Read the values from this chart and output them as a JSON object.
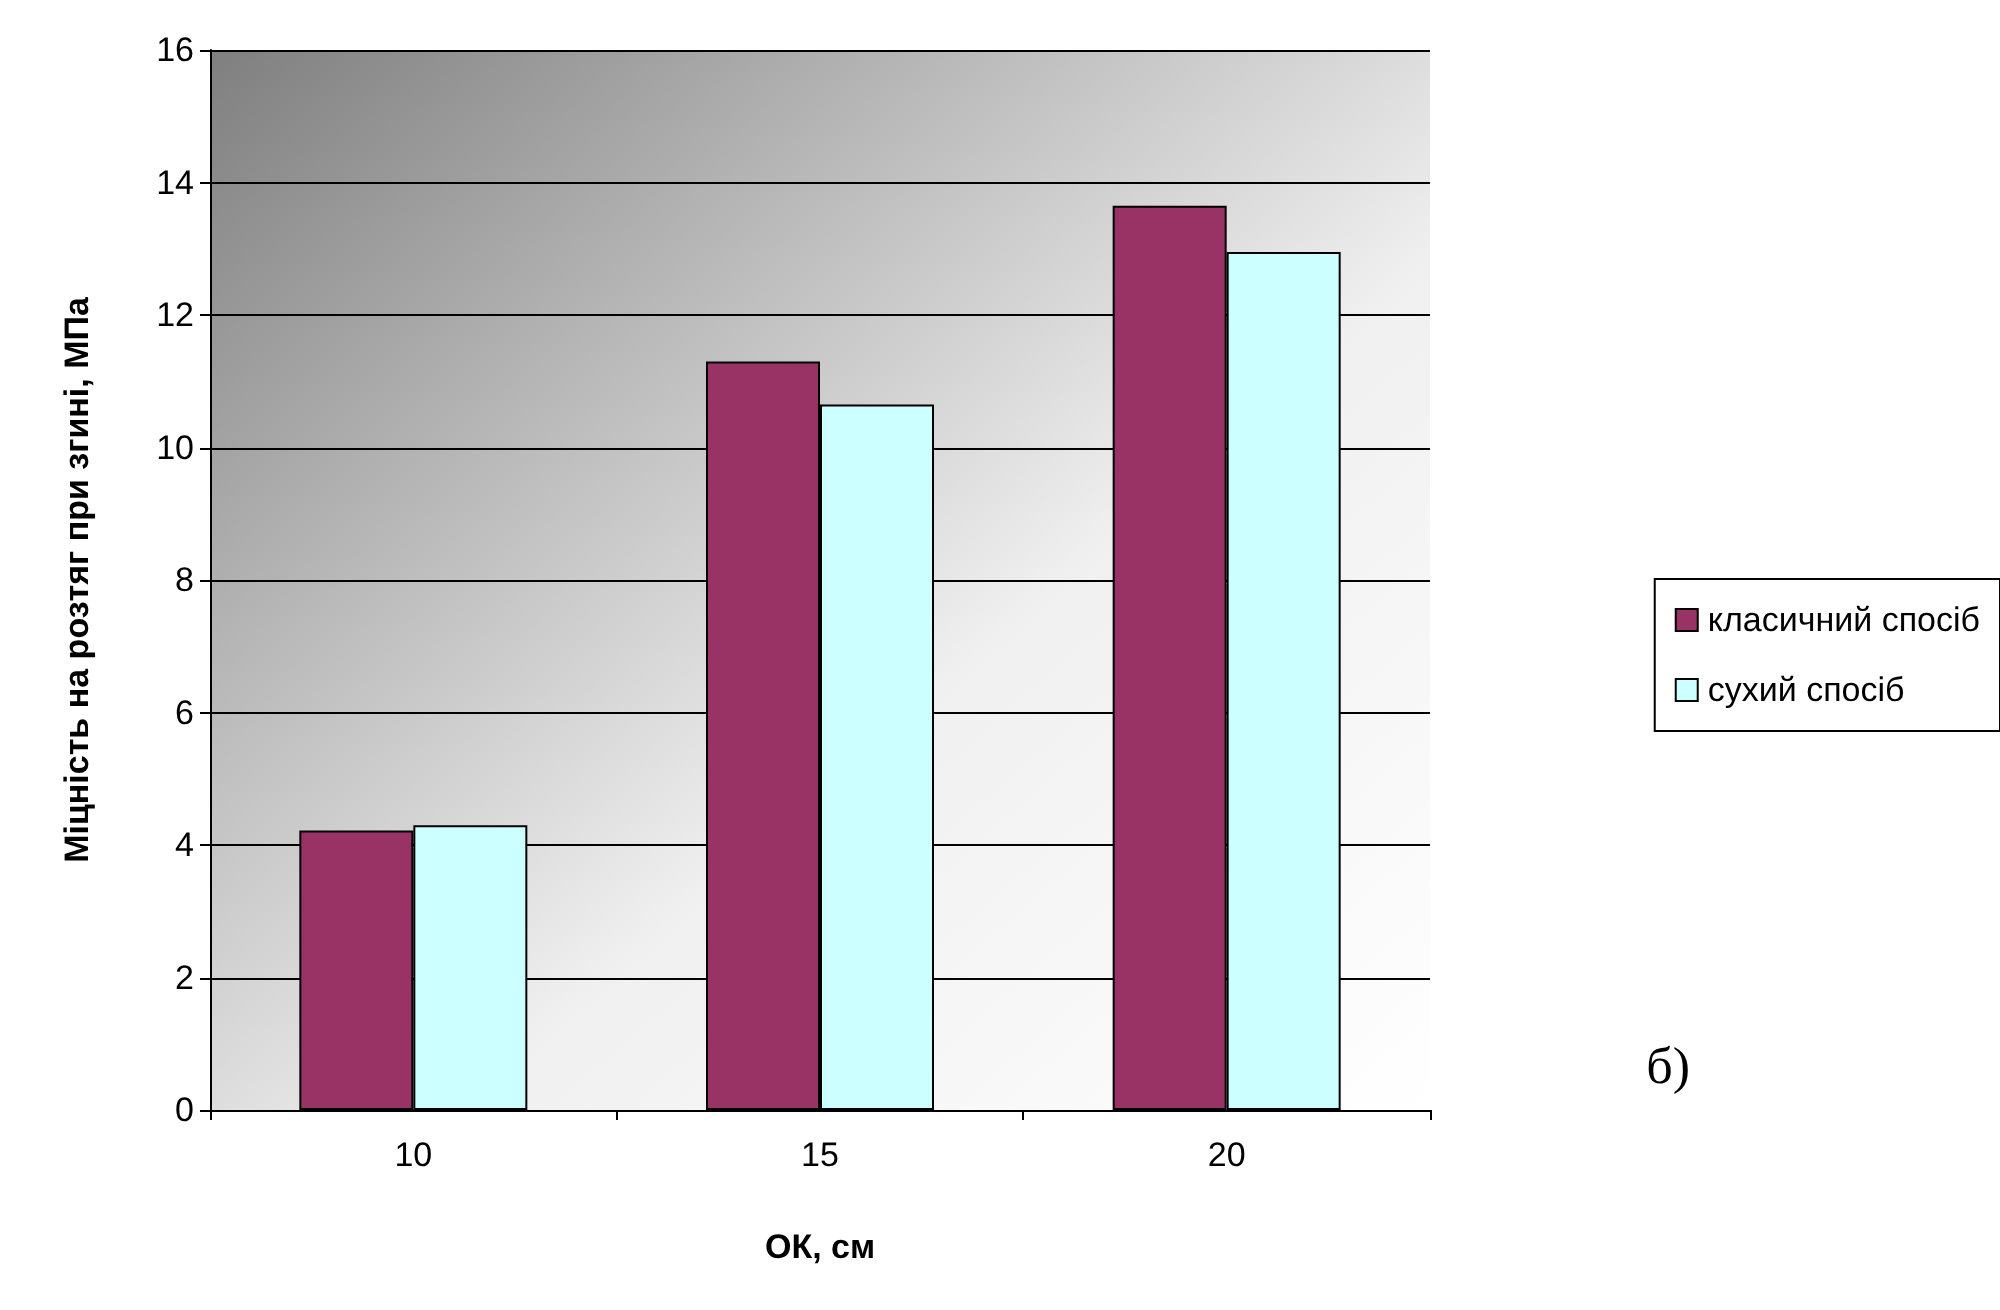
{
  "chart_data": {
    "type": "bar",
    "xlabel": "ОК, см",
    "ylabel": "Міцність на розтяг при згині, МПа",
    "categories": [
      "10",
      "15",
      "20"
    ],
    "series": [
      {
        "name": "класичний спосіб",
        "color": "#993366",
        "values": [
          4.22,
          11.3,
          13.65
        ]
      },
      {
        "name": "сухий спосіб",
        "color": "#ccffff",
        "values": [
          4.3,
          10.65,
          12.95
        ]
      }
    ],
    "ylim": [
      0,
      16
    ],
    "yticks": [
      0,
      2,
      4,
      6,
      8,
      10,
      12,
      14,
      16
    ],
    "grid": "y",
    "legend": "right",
    "annotations": [
      "б)"
    ]
  }
}
